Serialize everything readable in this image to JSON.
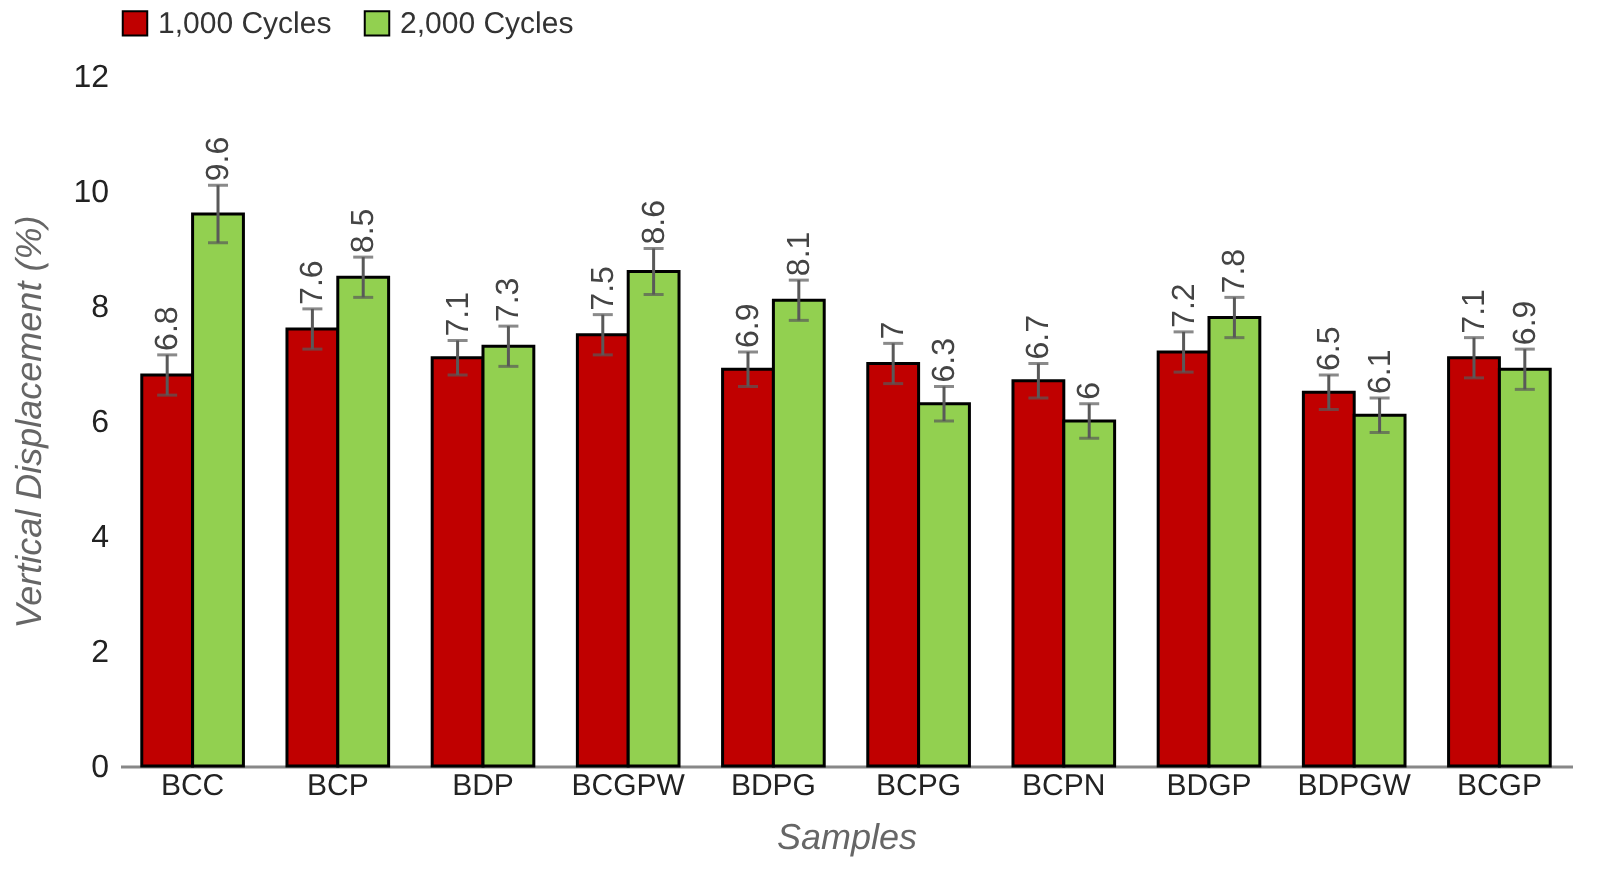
{
  "chart_data": {
    "type": "bar",
    "xlabel": "Samples",
    "ylabel": "Vertical Displacement (%)",
    "categories": [
      "BCC",
      "BCP",
      "BDP",
      "BCGPW",
      "BDPG",
      "BCPG",
      "BCPN",
      "BDGP",
      "BDPGW",
      "BCGP"
    ],
    "series": [
      {
        "name": "1,000 Cycles",
        "color": "#c00000",
        "values": [
          6.8,
          7.6,
          7.1,
          7.5,
          6.9,
          7,
          6.7,
          7.2,
          6.5,
          7.1
        ],
        "errors": [
          0.35,
          0.35,
          0.3,
          0.35,
          0.3,
          0.35,
          0.3,
          0.35,
          0.3,
          0.35
        ]
      },
      {
        "name": "2,000 Cycles",
        "color": "#92d050",
        "values": [
          9.6,
          8.5,
          7.3,
          8.6,
          8.1,
          6.3,
          6,
          7.8,
          6.1,
          6.9
        ],
        "errors": [
          0.5,
          0.35,
          0.35,
          0.4,
          0.35,
          0.3,
          0.3,
          0.35,
          0.3,
          0.35
        ]
      }
    ],
    "ylim": [
      0,
      12
    ],
    "yticks": [
      0,
      2,
      4,
      6,
      8,
      10,
      12
    ],
    "legend": "top",
    "data_labels": true
  }
}
